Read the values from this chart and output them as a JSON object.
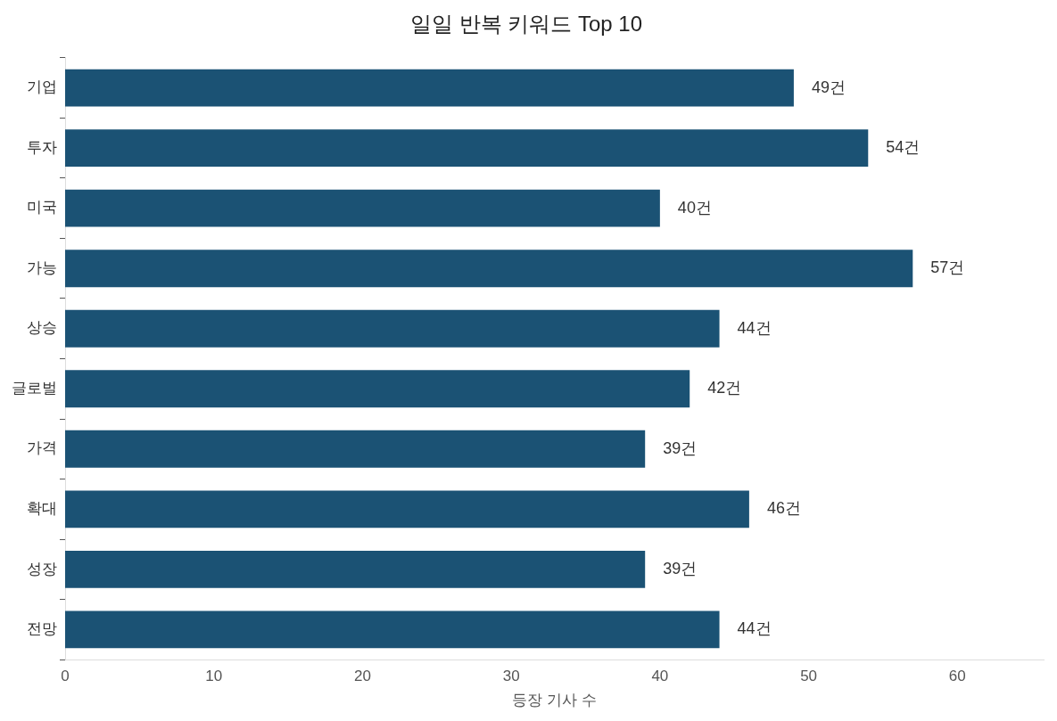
{
  "chart_data": {
    "type": "bar",
    "orientation": "horizontal",
    "title": "일일 반복 키워드 Top 10",
    "xlabel": "등장 기사 수",
    "categories": [
      "기업",
      "투자",
      "미국",
      "가능",
      "상승",
      "글로벌",
      "가격",
      "확대",
      "성장",
      "전망"
    ],
    "values": [
      49,
      54,
      40,
      57,
      44,
      42,
      39,
      46,
      39,
      44
    ],
    "value_labels": [
      "49건",
      "54건",
      "40건",
      "57건",
      "44건",
      "42건",
      "39건",
      "46건",
      "39건",
      "44건"
    ],
    "color": "#1b5274",
    "xlim": [
      0,
      65.8
    ],
    "xticks": [
      0,
      10,
      20,
      30,
      40,
      50,
      60
    ],
    "grid": false,
    "legend": false
  }
}
